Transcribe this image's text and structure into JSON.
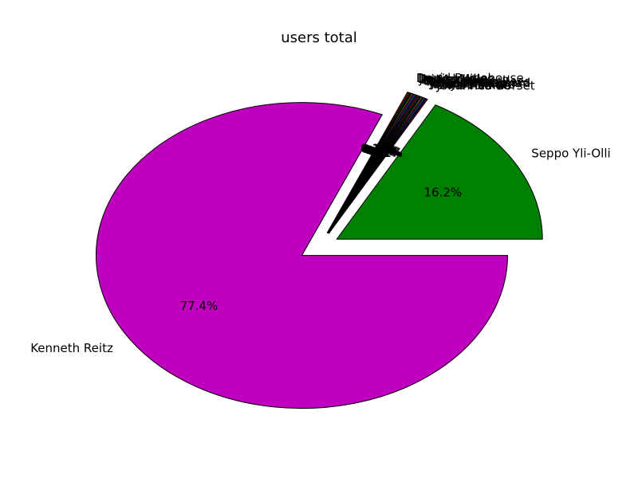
{
  "chart_data": {
    "type": "pie",
    "title": "users total",
    "slices": [
      {
        "name": "Seppo Yli-Olli",
        "value": 16.2,
        "pct_label": "16.2%",
        "color": "#008000"
      },
      {
        "name": "Johannes Gorset",
        "value": 0.1,
        "pct_label": "0.1%",
        "color": "#ff0000"
      },
      {
        "name": "Chris Adams",
        "value": 0.1,
        "pct_label": "0.1%",
        "color": "#0000ff"
      },
      {
        "name": "Rhys Elsmore",
        "value": 0.1,
        "pct_label": "0.1%",
        "color": "#00bfbf"
      },
      {
        "name": "Daniel Miller",
        "value": 0.1,
        "pct_label": "0.1%",
        "color": "#bf00bf"
      },
      {
        "name": "Jonatan Heyman",
        "value": 0.1,
        "pct_label": "0.1%",
        "color": "#bfbf00"
      },
      {
        "name": "Josselin Jacquard",
        "value": 0.1,
        "pct_label": "0.1%",
        "color": "#000000"
      },
      {
        "name": "Cory Benfield",
        "value": 0.1,
        "pct_label": "0.1%",
        "color": "#008000"
      },
      {
        "name": "Reinout van Rees",
        "value": 0.1,
        "pct_label": "0.1%",
        "color": "#ff0000"
      },
      {
        "name": "Ian Cordasco",
        "value": 0.1,
        "pct_label": "0.1%",
        "color": "#0000ff"
      },
      {
        "name": "Mike Tsai",
        "value": 0.1,
        "pct_label": "0.1%",
        "color": "#00bfbf"
      },
      {
        "name": "Luke Lee",
        "value": 0.1,
        "pct_label": "0.1%",
        "color": "#bf00bf"
      },
      {
        "name": "Rohan Jain",
        "value": 0.1,
        "pct_label": "0.1%",
        "color": "#bfbf00"
      },
      {
        "name": "Jiri Machalek",
        "value": 0.1,
        "pct_label": "0.1%",
        "color": "#000000"
      },
      {
        "name": "Daniel Miller",
        "value": 0.1,
        "pct_label": "0.1%",
        "color": "#008000"
      },
      {
        "name": "David Pursehouse",
        "value": 0.1,
        "pct_label": "0.1%",
        "color": "#ff0000"
      },
      {
        "name": "Kenneth Reitz",
        "value": 77.4,
        "pct_label": "77.4%",
        "color": "#bf00bf"
      }
    ]
  }
}
